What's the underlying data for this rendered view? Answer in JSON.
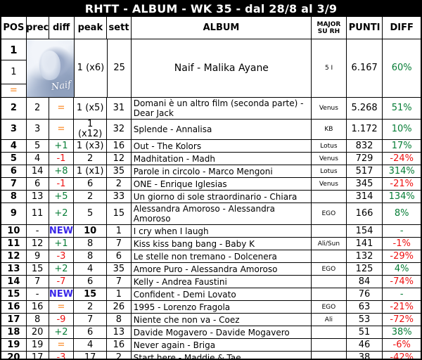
{
  "title": "RHTT - ALBUM - WK 35 - dal 28/8 al 3/9",
  "colors": {
    "positive_green": "#067d36",
    "negative_red": "#ee1111",
    "same_orange": "#fba050",
    "new_blue": "#3a28e8",
    "titlebar_bg": "#000000",
    "titlebar_fg": "#ffffff"
  },
  "columns": [
    {
      "key": "pos",
      "label": "POS"
    },
    {
      "key": "prec",
      "label": "prec"
    },
    {
      "key": "diff",
      "label": "diff"
    },
    {
      "key": "peak",
      "label": "peak"
    },
    {
      "key": "sett",
      "label": "sett"
    },
    {
      "key": "album",
      "label": "ALBUM"
    },
    {
      "key": "major",
      "label": "MAJOR",
      "label2": "SU RH"
    },
    {
      "key": "punti",
      "label": "PUNTI"
    },
    {
      "key": "pct",
      "label": "DIFF"
    }
  ],
  "rows": [
    {
      "pos": "1",
      "prec": "1",
      "diff": "=",
      "diff_c": "orange",
      "peak": "1 (x6)",
      "peak_b": false,
      "sett": "25",
      "album": "Naif - Malika Ayane",
      "big": true,
      "image": true,
      "cover_text": "Naif",
      "major": "5 I",
      "punti": "6.167",
      "pct": "60%",
      "pct_c": "green"
    },
    {
      "pos": "2",
      "prec": "2",
      "diff": "=",
      "diff_c": "orange",
      "peak": "1 (x5)",
      "peak_b": false,
      "sett": "31",
      "album": "Domani è un altro film (seconda parte) - Dear Jack",
      "major": "Venus",
      "punti": "5.268",
      "pct": "51%",
      "pct_c": "green"
    },
    {
      "pos": "3",
      "prec": "3",
      "diff": "=",
      "diff_c": "orange",
      "peak": "1 (x12)",
      "peak_b": false,
      "sett": "32",
      "album": "Splende - Annalisa",
      "major": "KB",
      "punti": "1.172",
      "pct": "10%",
      "pct_c": "green"
    },
    {
      "pos": "4",
      "prec": "5",
      "diff": "+1",
      "diff_c": "green",
      "peak": "1 (x3)",
      "peak_b": false,
      "sett": "16",
      "album": "Out - The Kolors",
      "major": "Lotus",
      "punti": "832",
      "pct": "17%",
      "pct_c": "green"
    },
    {
      "pos": "5",
      "prec": "4",
      "diff": "-1",
      "diff_c": "red",
      "peak": "2",
      "peak_b": false,
      "sett": "12",
      "album": "Madhitation - Madh",
      "major": "Venus",
      "punti": "729",
      "pct": "-24%",
      "pct_c": "red"
    },
    {
      "pos": "6",
      "prec": "14",
      "diff": "+8",
      "diff_c": "green",
      "peak": "1 (x1)",
      "peak_b": false,
      "sett": "35",
      "album": "Parole in circolo - Marco Mengoni",
      "major": "Lotus",
      "punti": "517",
      "pct": "314%",
      "pct_c": "green"
    },
    {
      "pos": "7",
      "prec": "6",
      "diff": "-1",
      "diff_c": "red",
      "peak": "6",
      "peak_b": false,
      "sett": "2",
      "album": "ONE - Enrique Iglesias",
      "major": "Venus",
      "punti": "345",
      "pct": "-21%",
      "pct_c": "red"
    },
    {
      "pos": "8",
      "prec": "13",
      "diff": "+5",
      "diff_c": "green",
      "peak": "2",
      "peak_b": false,
      "sett": "33",
      "album": "Un giorno di sole straordinario - Chiara",
      "major": "",
      "punti": "314",
      "pct": "134%",
      "pct_c": "green"
    },
    {
      "pos": "9",
      "prec": "11",
      "diff": "+2",
      "diff_c": "green",
      "peak": "5",
      "peak_b": false,
      "sett": "15",
      "album": "Alessandra Amoroso - Alessandra Amoroso",
      "major": "EGO",
      "punti": "166",
      "pct": "8%",
      "pct_c": "green"
    },
    {
      "pos": "10",
      "prec": "-",
      "diff": "NEW",
      "diff_c": "blue",
      "peak": "10",
      "peak_b": true,
      "sett": "1",
      "album": "I cry when I laugh",
      "major": "",
      "punti": "154",
      "pct": "-",
      "pct_c": "green"
    },
    {
      "pos": "11",
      "prec": "12",
      "diff": "+1",
      "diff_c": "green",
      "peak": "8",
      "peak_b": false,
      "sett": "7",
      "album": "Kiss kiss bang bang - Baby K",
      "major": "Ali/Sun",
      "punti": "141",
      "pct": "-1%",
      "pct_c": "red"
    },
    {
      "pos": "12",
      "prec": "9",
      "diff": "-3",
      "diff_c": "red",
      "peak": "8",
      "peak_b": false,
      "sett": "6",
      "album": "Le stelle non tremano - Dolcenera",
      "major": "",
      "punti": "132",
      "pct": "-29%",
      "pct_c": "red"
    },
    {
      "pos": "13",
      "prec": "15",
      "diff": "+2",
      "diff_c": "green",
      "peak": "4",
      "peak_b": false,
      "sett": "35",
      "album": "Amore Puro - Alessandra Amoroso",
      "major": "EGO",
      "punti": "125",
      "pct": "4%",
      "pct_c": "green"
    },
    {
      "pos": "14",
      "prec": "7",
      "diff": "-7",
      "diff_c": "red",
      "peak": "6",
      "peak_b": false,
      "sett": "7",
      "album": "Kelly - Andrea Faustini",
      "major": "",
      "punti": "84",
      "pct": "-74%",
      "pct_c": "red"
    },
    {
      "pos": "15",
      "prec": "-",
      "diff": "NEW",
      "diff_c": "blue",
      "peak": "15",
      "peak_b": true,
      "sett": "1",
      "album": "Confident - Demi Lovato",
      "major": "",
      "punti": "76",
      "pct": "-",
      "pct_c": "green"
    },
    {
      "pos": "16",
      "prec": "16",
      "diff": "=",
      "diff_c": "orange",
      "peak": "2",
      "peak_b": false,
      "sett": "26",
      "album": "1995 - Lorenzo Fragola",
      "major": "EGO",
      "punti": "63",
      "pct": "-21%",
      "pct_c": "red"
    },
    {
      "pos": "17",
      "prec": "8",
      "diff": "-9",
      "diff_c": "red",
      "peak": "7",
      "peak_b": false,
      "sett": "8",
      "album": "Niente che non va - Coez",
      "major": "Ali",
      "punti": "53",
      "pct": "-72%",
      "pct_c": "red"
    },
    {
      "pos": "18",
      "prec": "20",
      "diff": "+2",
      "diff_c": "green",
      "peak": "6",
      "peak_b": false,
      "sett": "13",
      "album": "Davide Mogavero - Davide Mogavero",
      "major": "",
      "punti": "51",
      "pct": "38%",
      "pct_c": "green"
    },
    {
      "pos": "19",
      "prec": "19",
      "diff": "=",
      "diff_c": "orange",
      "peak": "4",
      "peak_b": false,
      "sett": "16",
      "album": "Never again - Briga",
      "major": "",
      "punti": "46",
      "pct": "-6%",
      "pct_c": "red"
    },
    {
      "pos": "20",
      "prec": "17",
      "diff": "-3",
      "diff_c": "red",
      "peak": "17",
      "peak_b": false,
      "sett": "2",
      "album": "Start here - Maddie & Tae",
      "major": "",
      "punti": "38",
      "pct": "-42%",
      "pct_c": "red"
    }
  ]
}
